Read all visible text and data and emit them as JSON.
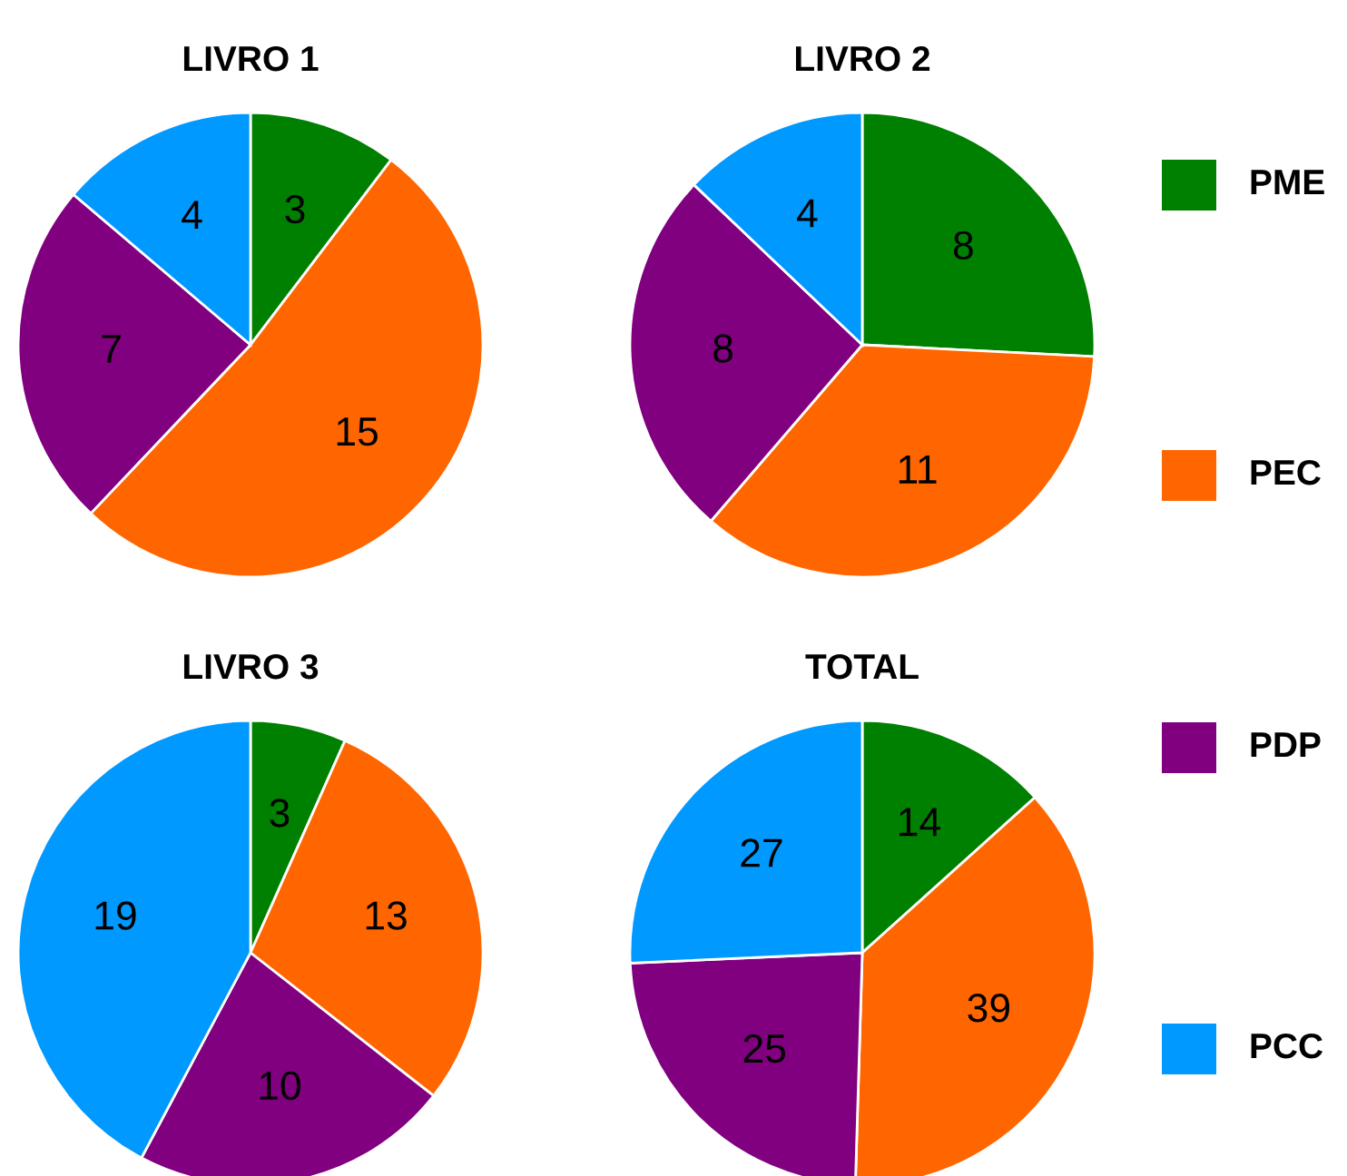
{
  "chart_data": [
    {
      "type": "pie",
      "title": "LIVRO 1",
      "categories": [
        "PME",
        "PEC",
        "PDP",
        "PCC"
      ],
      "values": [
        3,
        15,
        7,
        4
      ],
      "colors": [
        "#008000",
        "#ff6600",
        "#800080",
        "#0099ff"
      ],
      "data_labels": true,
      "legend": "right"
    },
    {
      "type": "pie",
      "title": "LIVRO 2",
      "categories": [
        null,
        null,
        null,
        null
      ],
      "values": [
        8,
        11,
        8,
        4
      ],
      "colors": [
        "#008000",
        "#ff6600",
        "#800080",
        "#0099ff"
      ],
      "data_labels": true
    },
    {
      "type": "pie",
      "title": "LIVRO 3",
      "categories": [
        null,
        null,
        null,
        null
      ],
      "values": [
        3,
        13,
        10,
        19
      ],
      "colors": [
        "#008000",
        "#ff6600",
        "#800080",
        "#0099ff"
      ],
      "data_labels": true
    },
    {
      "type": "pie",
      "title": "TOTAL",
      "categories": [
        null,
        null,
        null,
        null
      ],
      "values": [
        14,
        39,
        25,
        27
      ],
      "colors": [
        "#008000",
        "#ff6600",
        "#800080",
        "#0099ff"
      ],
      "data_labels": true
    }
  ]
}
